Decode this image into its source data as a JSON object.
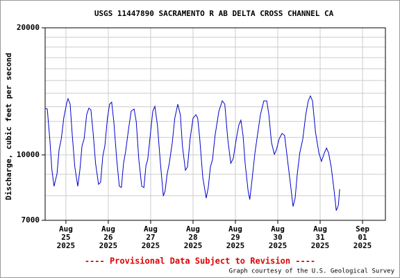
{
  "chart_data": {
    "type": "line",
    "title": "USGS 11447890 SACRAMENTO R AB DELTA CROSS CHANNEL CA",
    "y_label": "Discharge, cubic feet per second",
    "footer": "---- Provisional Data Subject to Revision ----",
    "credit": "Graph courtesy of the U.S. Geological Survey",
    "ylog": true,
    "grid": true,
    "ylim": [
      7000,
      20000
    ],
    "yticks": [
      7000,
      10000,
      20000
    ],
    "yminor": [
      8000,
      9000,
      11000,
      12000,
      13000,
      14000,
      15000,
      16000,
      17000,
      18000,
      19000
    ],
    "xlim": [
      -0.49,
      7.54
    ],
    "xticks": [
      {
        "value": 0,
        "label": "Aug 25 2025"
      },
      {
        "value": 1,
        "label": "Aug 26 2025"
      },
      {
        "value": 2,
        "label": "Aug 27 2025"
      },
      {
        "value": 3,
        "label": "Aug 28 2025"
      },
      {
        "value": 4,
        "label": "Aug 29 2025"
      },
      {
        "value": 5,
        "label": "Aug 30 2025"
      },
      {
        "value": 6,
        "label": "Aug 31 2025"
      },
      {
        "value": 7,
        "label": "Sep 01 2025"
      }
    ],
    "x": [
      -0.49,
      -0.44,
      -0.38,
      -0.33,
      -0.28,
      -0.21,
      -0.16,
      -0.11,
      -0.05,
      0.02,
      0.05,
      0.1,
      0.15,
      0.21,
      0.28,
      0.33,
      0.38,
      0.43,
      0.49,
      0.54,
      0.59,
      0.64,
      0.7,
      0.77,
      0.82,
      0.87,
      0.92,
      0.98,
      1.03,
      1.08,
      1.13,
      1.2,
      1.26,
      1.31,
      1.36,
      1.41,
      1.48,
      1.54,
      1.61,
      1.66,
      1.72,
      1.79,
      1.84,
      1.89,
      1.93,
      2.0,
      2.05,
      2.1,
      2.16,
      2.23,
      2.3,
      2.34,
      2.39,
      2.44,
      2.51,
      2.57,
      2.64,
      2.7,
      2.75,
      2.82,
      2.87,
      2.93,
      3.0,
      3.07,
      3.11,
      3.16,
      3.23,
      3.31,
      3.36,
      3.41,
      3.46,
      3.52,
      3.61,
      3.69,
      3.75,
      3.82,
      3.89,
      3.95,
      4.02,
      4.08,
      4.13,
      4.18,
      4.23,
      4.3,
      4.34,
      4.39,
      4.46,
      4.52,
      4.59,
      4.67,
      4.74,
      4.79,
      4.85,
      4.92,
      4.97,
      5.03,
      5.1,
      5.16,
      5.23,
      5.3,
      5.36,
      5.41,
      5.46,
      5.52,
      5.59,
      5.66,
      5.72,
      5.77,
      5.82,
      5.89,
      5.97,
      6.03,
      6.1,
      6.15,
      6.2,
      6.26,
      6.33,
      6.38,
      6.43,
      6.46
    ],
    "series": [
      {
        "color": "#0000cc",
        "values": [
          12900,
          12840,
          10900,
          9200,
          8430,
          9020,
          10300,
          10900,
          12220,
          13280,
          13590,
          13180,
          11120,
          9370,
          8430,
          9200,
          10500,
          10900,
          12450,
          12900,
          12790,
          11330,
          9550,
          8520,
          8620,
          9920,
          10500,
          12220,
          13180,
          13330,
          11990,
          9740,
          8430,
          8370,
          9550,
          10190,
          11540,
          12690,
          12840,
          11990,
          9740,
          8430,
          8370,
          9440,
          9740,
          11330,
          12690,
          13030,
          11770,
          9550,
          7990,
          8210,
          9020,
          9550,
          10700,
          12220,
          13180,
          12450,
          10500,
          9200,
          9370,
          10900,
          12220,
          12450,
          12220,
          10900,
          8850,
          7900,
          8370,
          9370,
          9740,
          11120,
          12690,
          13430,
          13180,
          10900,
          9550,
          9810,
          10900,
          11770,
          12080,
          11120,
          9550,
          8210,
          7840,
          8690,
          10110,
          11120,
          12450,
          13430,
          13430,
          12450,
          10700,
          10030,
          10300,
          10900,
          11240,
          11120,
          9740,
          8520,
          7550,
          7900,
          9020,
          10110,
          10900,
          12450,
          13430,
          13790,
          13430,
          11330,
          10110,
          9660,
          10110,
          10380,
          10110,
          9370,
          8210,
          7380,
          7610,
          8300
        ]
      }
    ]
  }
}
